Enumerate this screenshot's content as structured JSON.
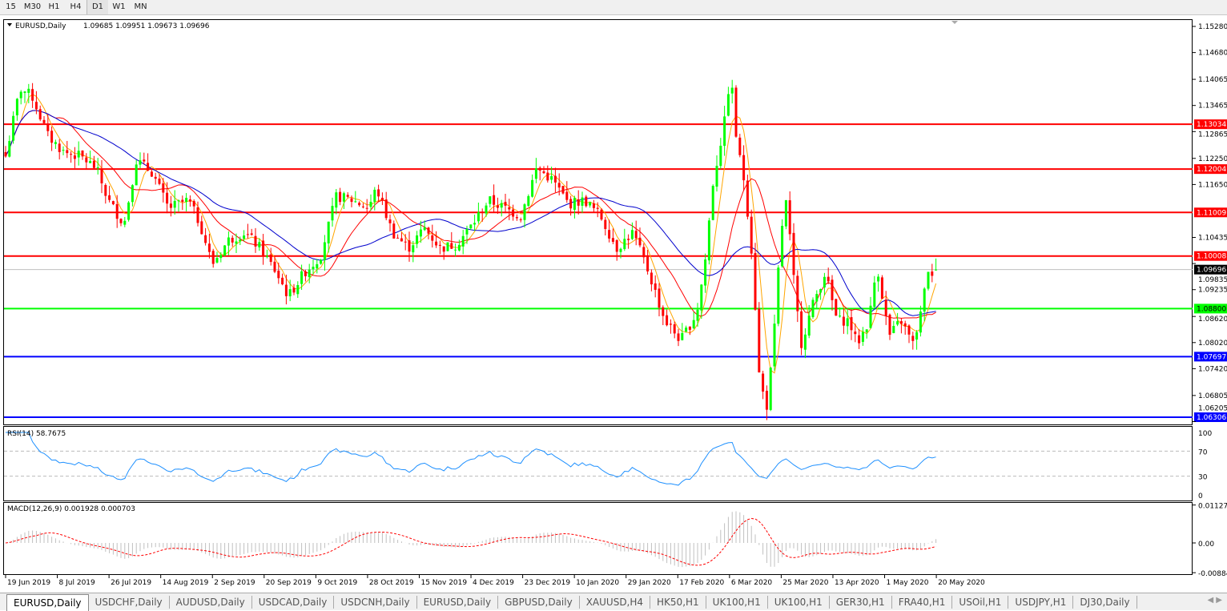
{
  "toolbar": {
    "timeframes": [
      "15",
      "M30",
      "H1",
      "H4",
      "D1",
      "W1",
      "MN"
    ],
    "selected": "D1"
  },
  "chart": {
    "symbol_info": "EURUSD,Daily",
    "ohlc": "1.09685 1.09951 1.09673 1.09696",
    "price_axis": [
      "1.15280",
      "1.14680",
      "1.14065",
      "1.13465",
      "1.12865",
      "1.12250",
      "1.11650",
      "1.10435",
      "1.09835",
      "1.09235",
      "1.08620",
      "1.08020",
      "1.07420",
      "1.06805",
      "1.06205"
    ],
    "current_price": "1.09696",
    "levels": [
      {
        "price": "1.13034",
        "color": "#ff0000"
      },
      {
        "price": "1.12004",
        "color": "#ff0000"
      },
      {
        "price": "1.11009",
        "color": "#ff0000"
      },
      {
        "price": "1.10008",
        "color": "#ff0000"
      },
      {
        "price": "1.08800",
        "color": "#00ff00"
      },
      {
        "price": "1.07697",
        "color": "#0000ff"
      },
      {
        "price": "1.06306",
        "color": "#0000ff"
      }
    ],
    "date_axis": [
      "19 Jun 2019",
      "8 Jul 2019",
      "26 Jul 2019",
      "14 Aug 2019",
      "2 Sep 2019",
      "20 Sep 2019",
      "9 Oct 2019",
      "28 Oct 2019",
      "15 Nov 2019",
      "4 Dec 2019",
      "23 Dec 2019",
      "10 Jan 2020",
      "29 Jan 2020",
      "17 Feb 2020",
      "6 Mar 2020",
      "25 Mar 2020",
      "13 Apr 2020",
      "1 May 2020",
      "20 May 2020"
    ],
    "approx_closes": [
      1.1221,
      1.1386,
      1.1368,
      1.1276,
      1.1239,
      1.123,
      1.1203,
      1.1129,
      1.1074,
      1.1221,
      1.1193,
      1.1111,
      1.1129,
      1.1074,
      1.0982,
      1.1037,
      1.1055,
      1.1019,
      1.0963,
      1.0908,
      1.0963,
      1.1,
      1.1138,
      1.1129,
      1.1111,
      1.1157,
      1.1055,
      1.1019,
      1.1065,
      1.1019,
      1.1028,
      1.1074,
      1.1129,
      1.1111,
      1.1092,
      1.1203,
      1.1175,
      1.112,
      1.1129,
      1.1092,
      1.1019,
      1.1055,
      1.0963,
      1.0853,
      1.0807,
      1.0871,
      1.0982,
      1.1166,
      1.1313,
      1.1423,
      1.1258,
      1.1166,
      1.0982,
      1.0724,
      1.0651,
      1.078,
      1.1055,
      1.1129,
      1.0963,
      1.0798,
      1.089,
      1.0963,
      1.0853,
      1.0853,
      1.0798,
      1.0853,
      1.0982,
      1.0816,
      1.0853,
      1.0798,
      1.0871,
      1.0982,
      1.089,
      1.097
    ],
    "colors": {
      "bull": "#00ff00",
      "bear": "#ff0000",
      "ma_fast": "#ffa500",
      "ma_mid": "#ff0000",
      "ma_slow": "#0000cd"
    }
  },
  "rsi": {
    "label": "RSI(14) 58.7675",
    "axis": [
      "100",
      "70",
      "30",
      "0"
    ],
    "color": "#1e90ff"
  },
  "macd": {
    "label": "MACD(12,26,9) 0.001928 0.000703",
    "axis": [
      "0.011277",
      "0.00",
      "-0.008845"
    ],
    "signal_color": "#ff0000",
    "hist_color": "#c0c0c0"
  },
  "tabs": [
    "EURUSD,Daily",
    "USDCHF,Daily",
    "AUDUSD,Daily",
    "USDCAD,Daily",
    "USDCNH,Daily",
    "EURUSD,Daily",
    "GBPUSD,Daily",
    "XAUUSD,H4",
    "HK50,H1",
    "UK100,H1",
    "UK100,H1",
    "GER30,H1",
    "FRA40,H1",
    "USOil,H1",
    "USDJPY,H1",
    "DJ30,Daily"
  ],
  "active_tab": 0
}
